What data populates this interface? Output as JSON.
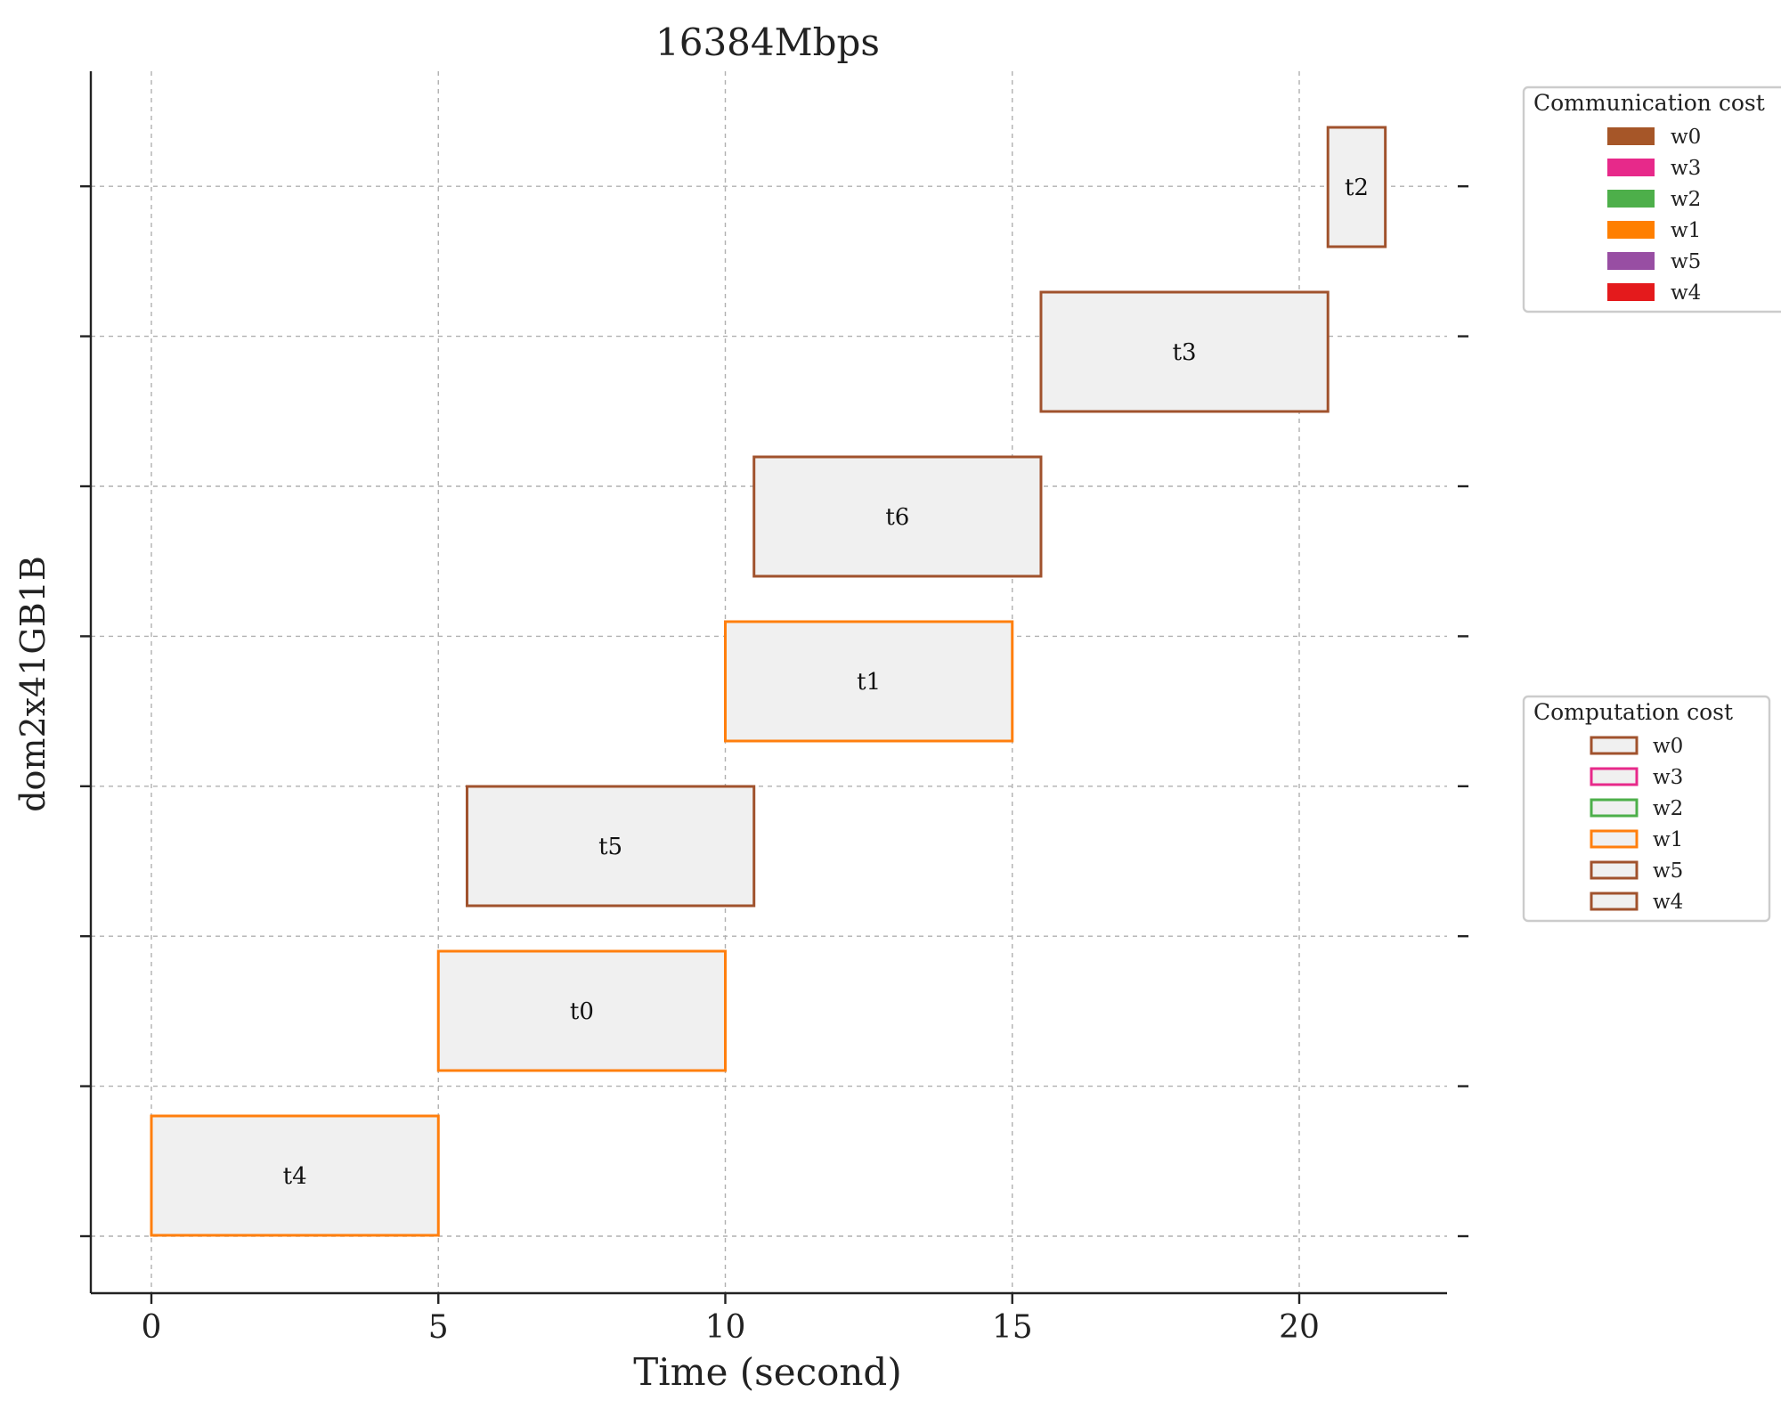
{
  "chart_data": {
    "type": "gantt",
    "title": "16384Mbps",
    "xlabel": "Time (second)",
    "ylabel": "dom2x41GB1B",
    "xlim": [
      -1.07,
      22.6
    ],
    "xticks": [
      0,
      5,
      10,
      15,
      20
    ],
    "grid": true,
    "tasks": [
      {
        "label": "t4",
        "start": 0.0,
        "end": 5.0,
        "worker": "w1",
        "color": "#ff7f0e"
      },
      {
        "label": "t0",
        "start": 5.0,
        "end": 10.0,
        "worker": "w1",
        "color": "#ff7f0e"
      },
      {
        "label": "t5",
        "start": 5.5,
        "end": 10.5,
        "worker": "w0",
        "color": "#a0522d"
      },
      {
        "label": "t1",
        "start": 10.0,
        "end": 15.0,
        "worker": "w1",
        "color": "#ff7f0e"
      },
      {
        "label": "t6",
        "start": 10.5,
        "end": 15.5,
        "worker": "w0",
        "color": "#a0522d"
      },
      {
        "label": "t3",
        "start": 15.5,
        "end": 20.5,
        "worker": "w0",
        "color": "#a0522d"
      },
      {
        "label": "t2",
        "start": 20.5,
        "end": 21.5,
        "worker": "w0",
        "color": "#a0522d"
      }
    ],
    "legends": [
      {
        "title": "Communication cost",
        "style": "filled",
        "entries": [
          {
            "label": "w0",
            "color": "#a65628"
          },
          {
            "label": "w3",
            "color": "#e7298a"
          },
          {
            "label": "w2",
            "color": "#4daf4a"
          },
          {
            "label": "w1",
            "color": "#ff7f00"
          },
          {
            "label": "w5",
            "color": "#984ea3"
          },
          {
            "label": "w4",
            "color": "#e41a1c"
          }
        ]
      },
      {
        "title": "Computation cost",
        "style": "outline",
        "entries": [
          {
            "label": "w0",
            "color": "#a0522d"
          },
          {
            "label": "w3",
            "color": "#e7298a"
          },
          {
            "label": "w2",
            "color": "#4daf4a"
          },
          {
            "label": "w1",
            "color": "#ff7f0e"
          },
          {
            "label": "w5",
            "color": "#a0522d"
          },
          {
            "label": "w4",
            "color": "#a0522d"
          }
        ]
      }
    ]
  }
}
